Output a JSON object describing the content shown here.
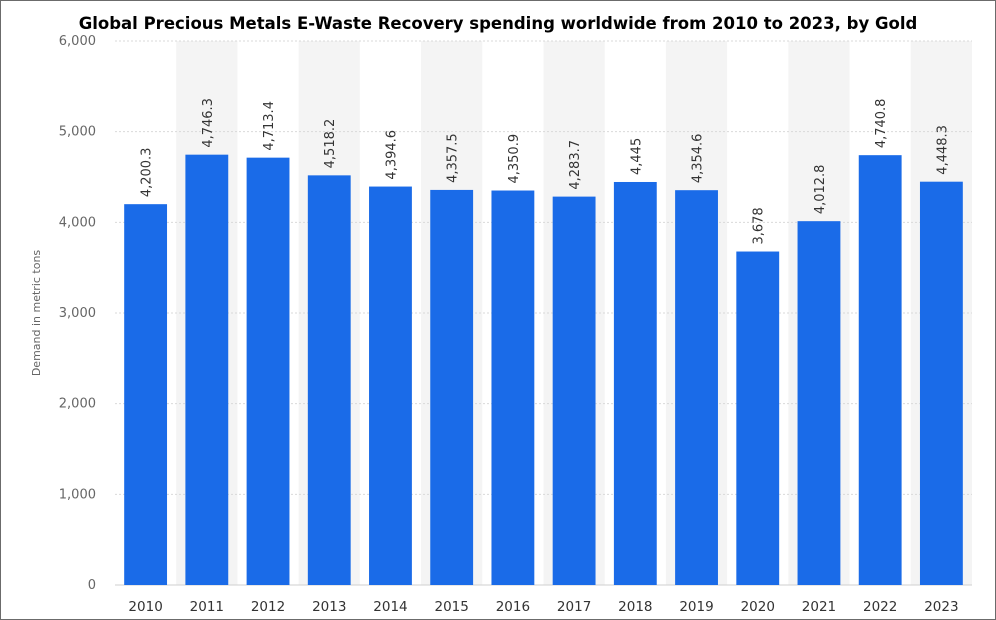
{
  "chart_data": {
    "type": "bar",
    "title": "Global Precious Metals E-Waste Recovery spending worldwide from 2010 to 2023, by Gold",
    "ylabel": "Demand in metric tons",
    "xlabel": "",
    "ylim": [
      0,
      6000
    ],
    "yticks": [
      "0",
      "1,000",
      "2,000",
      "3,000",
      "4,000",
      "5,000",
      "6,000"
    ],
    "categories": [
      "2010",
      "2011",
      "2012",
      "2013",
      "2014",
      "2015",
      "2016",
      "2017",
      "2018",
      "2019",
      "2020",
      "2021",
      "2022",
      "2023"
    ],
    "values": [
      4200.3,
      4746.3,
      4713.4,
      4518.2,
      4394.6,
      4357.5,
      4350.9,
      4283.7,
      4445,
      4354.6,
      3678,
      4012.8,
      4740.8,
      4448.3
    ],
    "value_labels": [
      "4,200.3",
      "4,746.3",
      "4,713.4",
      "4,518.2",
      "4,394.6",
      "4,357.5",
      "4,350.9",
      "4,283.7",
      "4,445",
      "4,354.6",
      "3,678",
      "4,012.8",
      "4,740.8",
      "4,448.3"
    ],
    "bar_color": "#1a6be8",
    "alt_band_color": "#f4f4f4",
    "grid": true
  }
}
